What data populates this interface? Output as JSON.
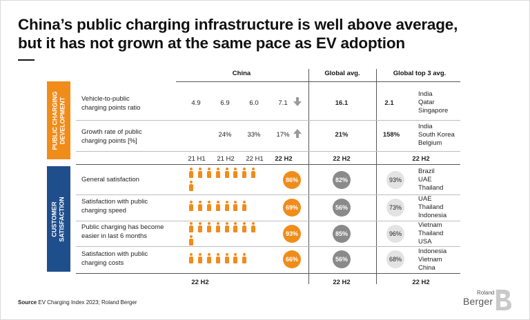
{
  "title_line1": "China’s public charging infrastructure is well above average,",
  "title_line2": "but it has not grown at the same pace as EV adoption",
  "headers": {
    "china": "China",
    "global_avg": "Global avg.",
    "global_top3": "Global top 3 avg."
  },
  "sections": {
    "development": "PUBLIC CHARGING\nDEVELOPMENT",
    "satisfaction": "CUSTOMER\nSATISFACTION"
  },
  "periods": [
    "21 H1",
    "21 H2",
    "22 H1",
    "22 H2"
  ],
  "period_global": "22 H2",
  "period_top3": "22 H2",
  "bottom_periods": {
    "china": "22 H2",
    "global": "22 H2",
    "top3": "22 H2"
  },
  "colors": {
    "orange": "#f08c1a",
    "blue": "#1f4e8c",
    "grey": "#8a8a8a",
    "light": "#e3e3e3"
  },
  "chart_data": {
    "type": "table",
    "title": "China’s public charging infrastructure is well above average, but it has not grown at the same pace as EV adoption",
    "development_rows": [
      {
        "label": "Vehicle-to-public\ncharging points ratio",
        "china": [
          "4.9",
          "6.9",
          "6.0",
          "7.1"
        ],
        "trend_icon": "arrow-down-icon",
        "global_avg": "16.1",
        "top3_avg": "2.1",
        "top3_countries": "India\nQatar\nSingapore"
      },
      {
        "label": "Growth rate of public\ncharging points [%]",
        "china": [
          "",
          "24%",
          "33%",
          "17%"
        ],
        "trend_icon": "arrow-up-icon",
        "global_avg": "21%",
        "top3_avg": "158%",
        "top3_countries": "India\nSouth Korea\nBelgium"
      }
    ],
    "satisfaction_rows": [
      {
        "label": "General satisfaction",
        "china": "86%",
        "china_value": 86,
        "global_avg": "82%",
        "top3_avg": "93%",
        "top3_countries": "Brazil\nUAE\nThailand"
      },
      {
        "label": "Satisfaction with public\ncharging speed",
        "china": "69%",
        "china_value": 69,
        "global_avg": "56%",
        "top3_avg": "73%",
        "top3_countries": "UAE\nThailand\nIndonesia"
      },
      {
        "label": "Public charging has become\neasier in last 6 months",
        "china": "93%",
        "china_value": 93,
        "global_avg": "85%",
        "top3_avg": "96%",
        "top3_countries": "Vietnam\nThailand\nUSA"
      },
      {
        "label": "Satisfaction with public\ncharging costs",
        "china": "66%",
        "china_value": 66,
        "global_avg": "56%",
        "top3_avg": "68%",
        "top3_countries": "Indonesia\nVietnam\nChina"
      }
    ]
  },
  "source": {
    "label": "Source",
    "text": "EV Charging Index 2023; Roland Berger"
  },
  "logo": {
    "line1": "Roland",
    "line2": "Berger"
  }
}
